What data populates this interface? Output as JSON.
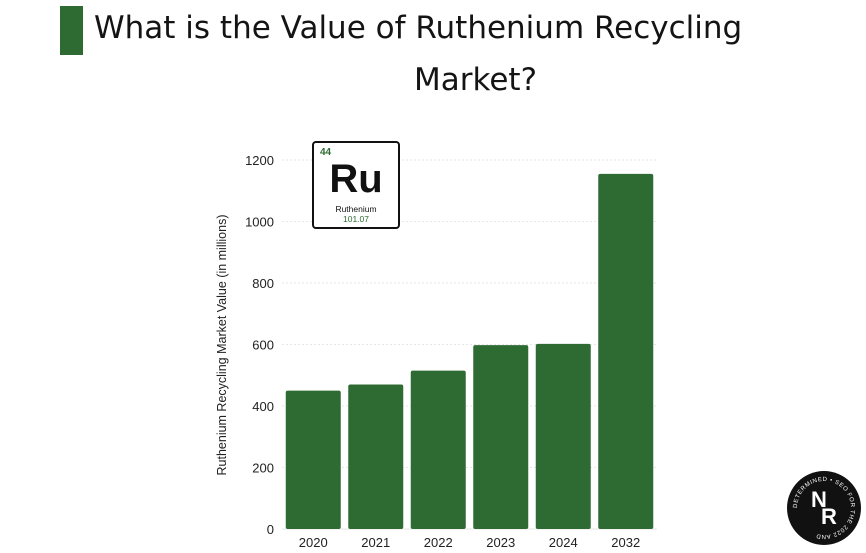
{
  "title": {
    "line1": "What is the Value of Ruthenium Recycling",
    "line2": "Market?"
  },
  "colors": {
    "accent": "#2e6b33",
    "grid": "#e6e6e6"
  },
  "element_card": {
    "atomic_number": "44",
    "symbol": "Ru",
    "name": "Ruthenium",
    "atomic_mass": "101.07"
  },
  "logo": {
    "initials_top": "N",
    "initials_bottom": "R",
    "ring_text": "DETERMINED • SEO FOR THE 2022 AND"
  },
  "chart_data": {
    "type": "bar",
    "categories": [
      "2020",
      "2021",
      "2022",
      "2023",
      "2024",
      "2032"
    ],
    "values": [
      450,
      470,
      515,
      598,
      602,
      1155
    ],
    "title": "What is the Value of Ruthenium Recycling Market?",
    "xlabel": "",
    "ylabel": "Ruthenium Recycling Market Value (in millions)",
    "ylim": [
      0,
      1200
    ],
    "yticks": [
      0,
      200,
      400,
      600,
      800,
      1000,
      1200
    ],
    "grid": true,
    "legend": "none"
  }
}
